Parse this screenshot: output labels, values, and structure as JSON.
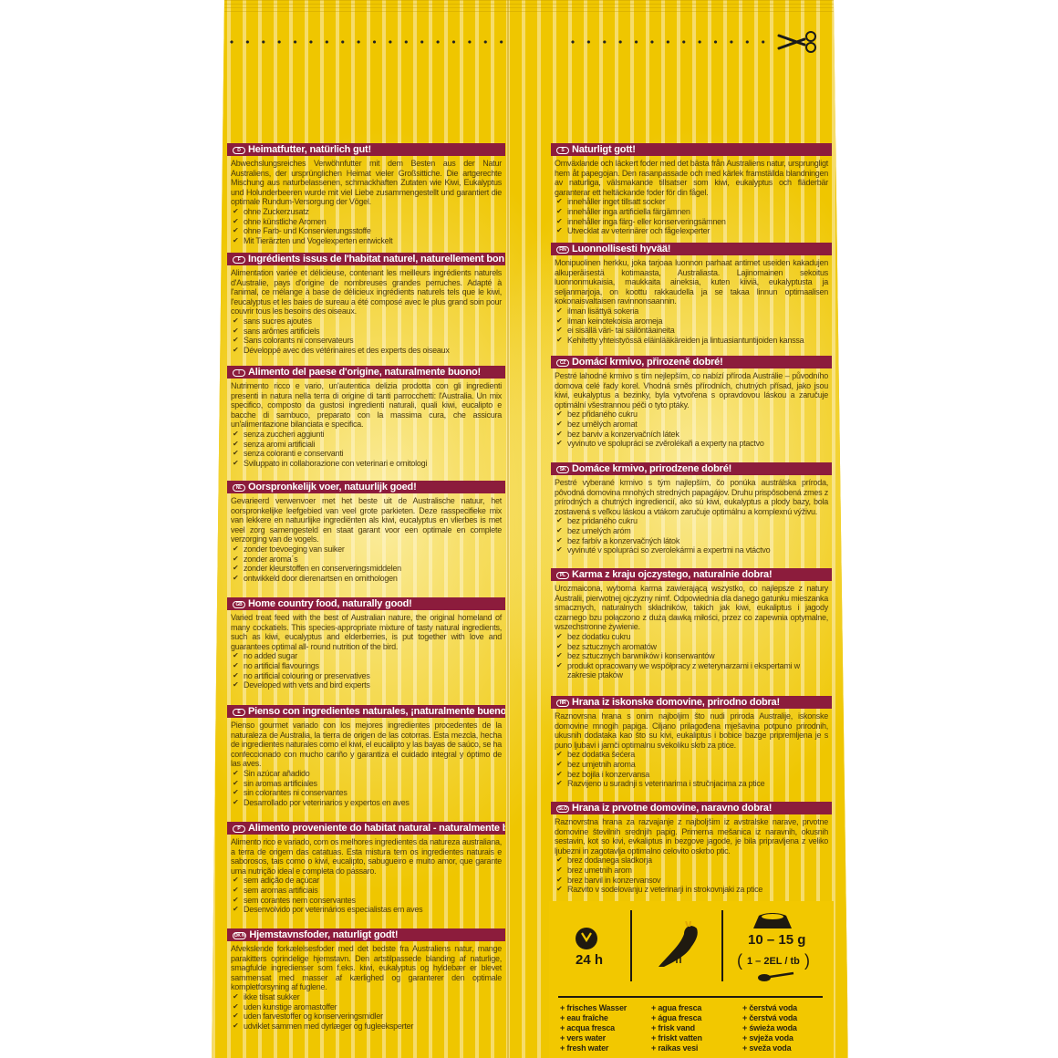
{
  "colors": {
    "bag_yellow": "#efc600",
    "stripe": "#f6dc6a",
    "header_maroon": "#8c1c3c",
    "body_text": "#4b3b0e"
  },
  "icons": {
    "cut_line": "scissors-icon",
    "time": "clock-icon",
    "animal": "cockatiel-icon",
    "dose": "bowl-icon",
    "spoon": "spoon-icon",
    "bullet": "checkmark-icon"
  },
  "left_sections": [
    {
      "code": "D",
      "title": "Heimatfutter, natürlich gut!",
      "body": "Abwechslungsreiches Verwöhnfutter mit dem Besten aus der Natur Australiens, der ursprünglichen Heimat vieler Großsittiche. Die artgerechte Mischung aus naturbelassenen, schmackhaften Zutaten wie Kiwi, Eukalyptus und Holunderbeeren wurde mit viel Liebe zusammengestellt und garantiert die optimale Rundum-Versorgung der Vögel.",
      "bullets": [
        "ohne Zuckerzusatz",
        "ohne künstliche Aromen",
        "ohne Farb- und Konservierungsstoffe",
        "Mit Tierärzten und Vogelexperten entwickelt"
      ]
    },
    {
      "code": "F",
      "title": "Ingrédients issus de l'habitat naturel, naturellement bon !",
      "body": "Alimentation variée et délicieuse, contenant les meilleurs ingrédients naturels d'Australie, pays d'origine de nombreuses grandes perruches. Adapté à l'animal, ce mélange à base de délicieux ingrédients naturels tels que le kiwi, l'eucalyptus et les baies de sureau a été composé avec le plus grand soin pour couvrir tous les besoins des oiseaux.",
      "bullets": [
        "sans sucres ajoutés",
        "sans arômes artificiels",
        "Sans colorants ni conservateurs",
        "Développé avec des vétérinaires et des experts des oiseaux"
      ]
    },
    {
      "code": "I",
      "title": "Alimento del paese d'origine, naturalmente buono!",
      "body": "Nutrimento ricco e vario, un'autentica delizia prodotta con gli ingredienti presenti in natura nella terra di origine di tanti parrocchetti: l'Australia. Un mix specifico, composto da gustosi ingredienti naturali, quali kiwi, eucalipto e bacche di sambuco, preparato con la massima cura, che assicura un'alimentazione bilanciata e specifica.",
      "bullets": [
        "senza zuccheri aggiunti",
        "senza aromi artificiali",
        "senza coloranti e conservanti",
        "Sviluppato in collaborazione con veterinari e ornitologi"
      ]
    },
    {
      "code": "NL",
      "title": "Oorspronkelijk voer, natuurlijk goed!",
      "body": "Gevarieerd verwenvoer met het beste uit de Australische natuur, het oorspronkelijke leefgebied van veel grote parkieten. Deze rasspecifieke mix van lekkere en natuurlijke ingrediënten als kiwi, eucalyptus en vlierbes is met veel zorg samengesteld en staat garant voor een optimale en complete verzorging van de vogels.",
      "bullets": [
        "zonder toevoeging van suiker",
        "zonder aroma´s",
        "zonder kleurstoffen en conserveringsmiddelen",
        "ontwikkeld door dierenartsen en ornithologen"
      ]
    },
    {
      "code": "GB",
      "title": "Home country food, naturally good!",
      "body": "Varied treat feed with the best of Australian nature, the original homeland of many cockatiels. This species-appropriate mixture of tasty natural ingredients, such as kiwi, eucalyptus and elderberries, is put together with love and guarantees optimal all- round nutrition of the bird.",
      "bullets": [
        "no added sugar",
        "no artificial flavourings",
        "no artificial colouring or preservatives",
        "Developed with vets and bird experts"
      ]
    },
    {
      "code": "E",
      "title": "Pienso con ingredientes naturales, ¡naturalmente bueno!",
      "body": "Pienso gourmet variado con los mejores ingredientes procedentes de la naturaleza de Australia, la tierra de origen de las cotorras. Esta mezcla, hecha de ingredientes naturales como el kiwi, el eucalipto y las bayas de saúco, se ha confeccionado con mucho cariño y garantiza el cuidado integral y óptimo de las aves.",
      "bullets": [
        "Sin azúcar añadido",
        "sin aromas artificiales",
        "sin colorantes ni conservantes",
        "Desarrollado por veterinarios y expertos en aves"
      ]
    },
    {
      "code": "P",
      "title": "Alimento proveniente do habitat natural - naturalmente bom!",
      "body": "Alimento rico e variado, com os melhores ingredientes da natureza australiana, a terra de origem das catatuas. Esta mistura tem os ingredientes naturais e saborosos, tais como o kiwi, eucalipto, sabugueiro e muito amor, que garante uma nutrição ideal e completa do pássaro.",
      "bullets": [
        "sem adição de açúcar",
        "sem aromas artificiais",
        "sem corantes nem conservantes",
        "Desenvolvido por veterinários especialistas em aves"
      ]
    },
    {
      "code": "DK N",
      "title": "Hjemstavnsfoder, naturligt godt!",
      "body": "Afvekslende forkælelsesfoder med det bedste fra Australiens natur, mange parakitters oprindelige hjemstavn. Den artstilpassede blanding af naturlige, smagfulde ingredienser som f.eks. kiwi, eukalyptus og hyldebær er blevet sammensat med masser af kærlighed og garanterer den optimale kompletforsyning af fuglene.",
      "bullets": [
        "ikke tilsat sukker",
        "uden kunstige aromastoffer",
        "uden farvestoffer og konserveringsmidler",
        "udviklet sammen med dyrlæger og fugleeksperter"
      ]
    }
  ],
  "right_sections": [
    {
      "code": "S",
      "title": "Naturligt gott!",
      "body": "Omväxlande och läckert foder med det bästa från Australiens natur, ursprungligt hem åt papegojan. Den rasanpassade och med kärlek framställda blandningen av naturliga, välsmakande tillsatser som kiwi, eukalyptus och fläderbär garanterar ett heltäckande foder för din fågel.",
      "bullets": [
        "innehåller inget tillsatt socker",
        "innehåller inga artificiella färgämnen",
        "innehåller inga färg- eller konserveringsämnen",
        "Utvecklat av veterinärer och fågelexperter"
      ]
    },
    {
      "code": "FIN",
      "title": "Luonnollisesti hyvää!",
      "body": "Monipuolinen herkku, joka tarjoaa luonnon parhaat antimet useiden kakadujen alkuperäisestä kotimaasta, Australiasta. Lajinomainen sekoitus luonnonmukaisia, maukkaita aineksia, kuten kiiviä, eukalyptusta ja seljanmarjoja, on koottu rakkaudella ja se takaa linnun optimaalisen kokonaisvaltaisen ravinnonsaannin.",
      "bullets": [
        "ilman lisättyä sokeria",
        "ilman keinotekoisia aromeja",
        "ei sisällä väri- tai säilöntäaineita",
        "Kehitetty yhteistyössä eläinlääkäreiden ja lintuasiantuntijoiden kanssa"
      ]
    },
    {
      "code": "CZ",
      "title": "Domácí krmivo, přirozeně dobré!",
      "body": "Pestré lahodné krmivo s tím nejlepším, co nabízí příroda Austrálie – původního domova celé řady korel. Vhodná směs přírodních, chutných přísad, jako jsou kiwi, eukalyptus a bezinky, byla vytvořena s opravdovou láskou a zaručuje optimální všestrannou péči o tyto ptáky.",
      "bullets": [
        "bez přidaného cukru",
        "bez umělých aromat",
        "bez barviv a konzervačních látek",
        "vyvinuto ve spolupráci se zvěrolékaři a experty na ptactvo"
      ]
    },
    {
      "code": "SK",
      "title": "Domáce krmivo, prirodzene dobré!",
      "body": "Pestré vyberané krmivo s tým najlepším, čo ponúka austrálska príroda, pôvodná domovina mnohých stredných papagájov. Druhu prispôsobená zmes z prírodných a chutných ingrediencií, ako sú kiwi, eukalyptus a plody bazy, bola zostavená s veľkou láskou a vtákom zaručuje optimálnu a komplexnú výživu.",
      "bullets": [
        "bez pridaného cukru",
        "bez umelých aróm",
        "bez farbív a konzervačných látok",
        "vyvinuté v spolupráci so zverolekármi a expertmi na vtáctvo"
      ]
    },
    {
      "code": "PL",
      "title": "Karma z kraju ojczystego, naturalnie dobra!",
      "body": "Urozmaicona, wyborna karma zawierającą wszystko, co najlepsze z natury Australii, pierwotnej ojczyzny nimf. Odpowiednia dla danego gatunku mieszanka smacznych, naturalnych składników, takich jak kiwi, eukaliptus i jagody czarnego bzu połączono z dużą dawką miłości, przez co zapewnia optymalne, wszechstronne żywienie.",
      "bullets": [
        "bez dodatku cukru",
        "bez sztucznych aromatów",
        "bez sztucznych barwników i konserwantów",
        "produkt opracowany we współpracy z weterynarzami i ekspertami w zakresie ptaków"
      ]
    },
    {
      "code": "HR",
      "title": "Hrana iz iskonske domovine, prirodno dobra!",
      "body": "Raznovrsna hrana s onim najboljim što nudi priroda Australije, iskonske domovine mnogih papiga. Ciljano prilagođena mješavina potpuno prirodnih, ukusnih dodataka kao što su kivi, eukaliptus i bobice bazge pripremljena je s puno ljubavi i jamči optimalnu svekoliku skrb za ptice.",
      "bullets": [
        "bez dodatka šećera",
        "bez umjetnih aroma",
        "bez bojila i konzervansa",
        "Razvijeno u suradnji s veterinarima i stručnjacima za ptice"
      ]
    },
    {
      "code": "SLO",
      "title": "Hrana iz prvotne domovine, naravno dobra!",
      "body": "Raznovrstna hrana za razvajanje z najboljšim iz avstralske narave, prvotne domovine številnih srednjih papig. Primerna mešanica iz naravnih, okusnih sestavin, kot so kivi, evkaliptus in bezgove jagode, je bila pripravljena z veliko ljubezni in zagotavlja optimalno celovito oskrbo ptic.",
      "bullets": [
        "brez dodanega sladkorja",
        "brez umetnih arom",
        "brez barvil in konzervansov",
        "Razvito v sodelovanju z veterinarji in strokovnjaki za ptice"
      ]
    }
  ],
  "feeding": {
    "time": "24 h",
    "dose": "10 – 15 g",
    "spoons": "1 – 2EL / tb",
    "water_columns": [
      [
        "+ frisches Wasser",
        "+ eau fraîche",
        "+ acqua fresca",
        "+ vers water",
        "+ fresh water"
      ],
      [
        "+ agua fresca",
        "+ água fresca",
        "+ frisk vand",
        "+ friskt vatten",
        "+ raikas vesi"
      ],
      [
        "+ čerstvá voda",
        "+ čerstvá voda",
        "+ świeża woda",
        "+ svježa voda",
        "+ sveža voda"
      ]
    ]
  }
}
